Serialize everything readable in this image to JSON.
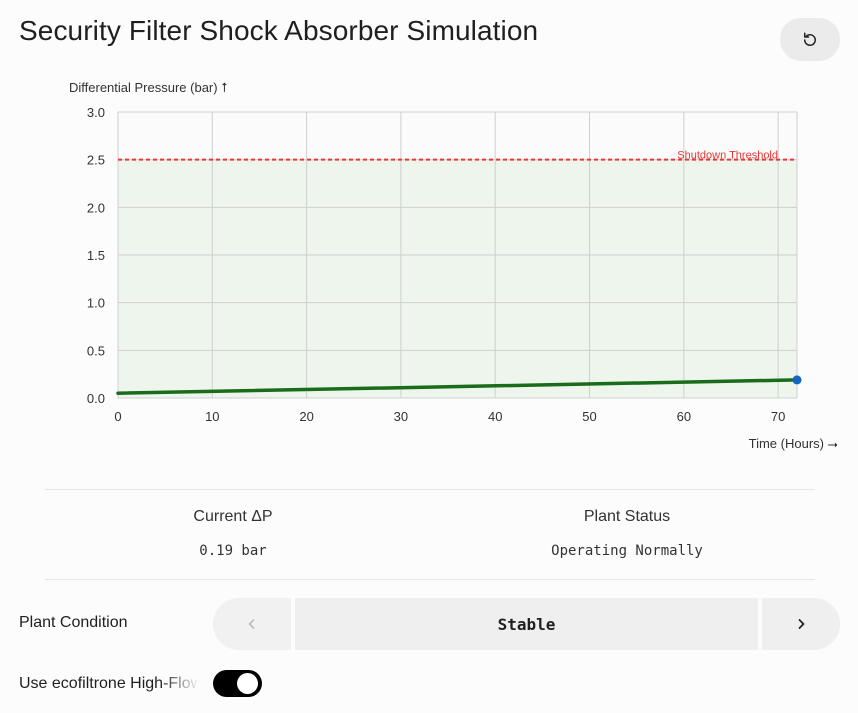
{
  "title": "Security Filter Shock Absorber Simulation",
  "reset_icon": "reset-icon",
  "chart_data": {
    "type": "line",
    "ylabel": "Differential Pressure (bar) ⭡",
    "xlabel": "Time (Hours) ⭢",
    "xlim": [
      0,
      72
    ],
    "ylim": [
      0,
      3.0
    ],
    "xticks": [
      "0",
      "10",
      "20",
      "30",
      "40",
      "50",
      "60",
      "70"
    ],
    "yticks": [
      "0.0",
      "0.5",
      "1.0",
      "1.5",
      "2.0",
      "2.5",
      "3.0"
    ],
    "grid": true,
    "series": [
      {
        "x": [
          0,
          72
        ],
        "values": [
          0.05,
          0.19
        ],
        "color": "#1a6b1a"
      }
    ],
    "current_point": {
      "x": 72,
      "y": 0.19,
      "color": "#1565c0"
    },
    "threshold": {
      "value": 2.5,
      "label": "Shutdown Threshold",
      "color": "#e53935"
    },
    "safe_zone": {
      "from": 0,
      "to": 2.5,
      "color": "#eef5ec"
    }
  },
  "stats": {
    "current_dp_label": "Current ΔP",
    "current_dp_value": "0.19 bar",
    "plant_status_label": "Plant Status",
    "plant_status_value": "Operating Normally"
  },
  "plant_condition": {
    "label": "Plant Condition",
    "value": "Stable",
    "prev_icon": "chevron-left-icon",
    "next_icon": "chevron-right-icon"
  },
  "toggle": {
    "label": "Use ecofiltrone High-Flow",
    "on": true
  }
}
